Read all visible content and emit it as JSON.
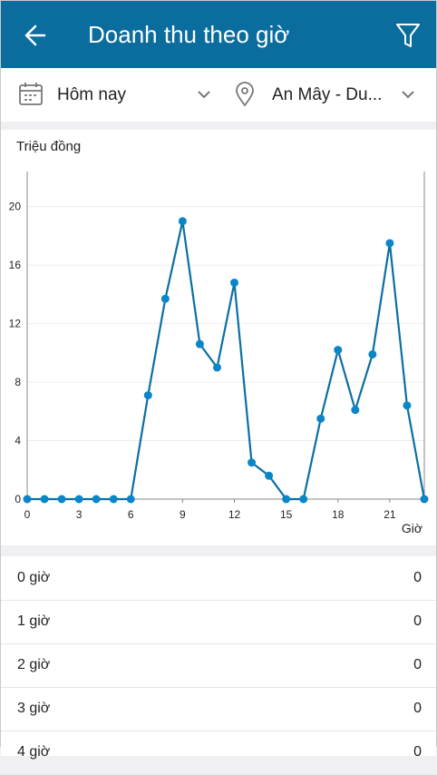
{
  "header": {
    "title": "Doanh thu theo giờ"
  },
  "filters": {
    "date": "Hôm nay",
    "location": "An Mây - Du..."
  },
  "chart_data": {
    "type": "line",
    "y_label": "Triệu đồng",
    "x_label": "Giờ",
    "x": [
      0,
      1,
      2,
      3,
      4,
      5,
      6,
      7,
      8,
      9,
      10,
      11,
      12,
      13,
      14,
      15,
      16,
      17,
      18,
      19,
      20,
      21,
      22,
      23
    ],
    "values": [
      0,
      0,
      0,
      0,
      0,
      0,
      0,
      7.1,
      13.7,
      19.0,
      10.6,
      9.0,
      14.8,
      2.5,
      1.6,
      0,
      0,
      5.5,
      10.2,
      6.1,
      9.9,
      17.5,
      6.4,
      0
    ],
    "color": "#0b6fa3",
    "marker_color": "#0a86c8",
    "xlim": [
      0,
      23
    ],
    "ylim": [
      0,
      22.4
    ],
    "xticks": [
      0,
      3,
      6,
      9,
      12,
      15,
      18,
      21
    ],
    "yticks": [
      0,
      4,
      8,
      12,
      16,
      20
    ],
    "grid": true
  },
  "list": {
    "rows": [
      {
        "label": "0 giờ",
        "value": 0
      },
      {
        "label": "1 giờ",
        "value": 0
      },
      {
        "label": "2 giờ",
        "value": 0
      },
      {
        "label": "3 giờ",
        "value": 0
      },
      {
        "label": "4 giờ",
        "value": 0
      }
    ]
  }
}
